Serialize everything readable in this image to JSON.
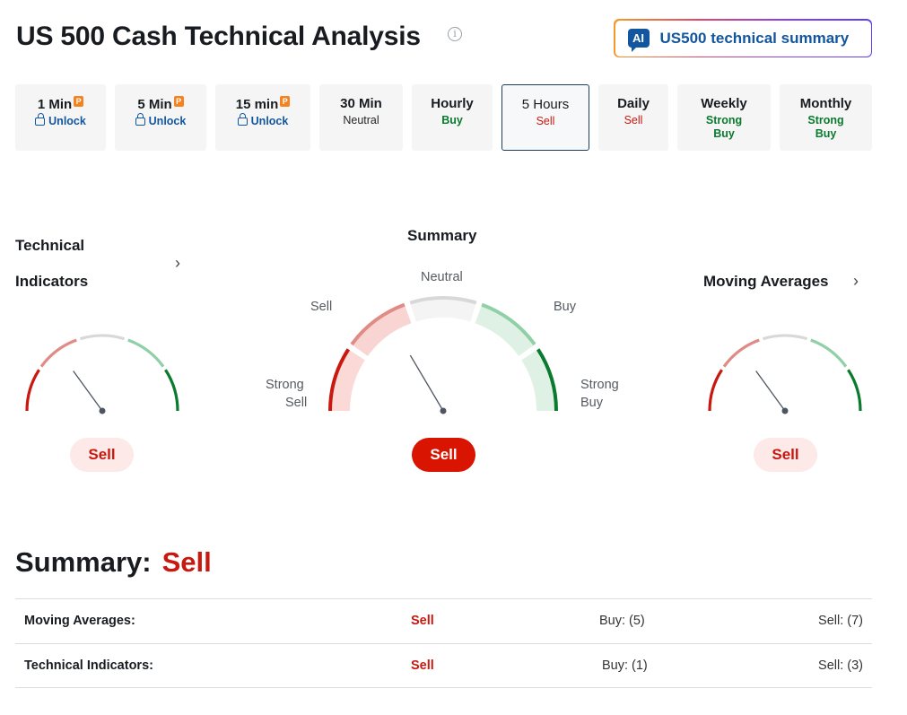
{
  "header": {
    "title": "US 500 Cash Technical Analysis",
    "info_glyph": "i",
    "ai_button": {
      "badge": "AI",
      "label": "US500 technical summary"
    }
  },
  "timeframes": [
    {
      "name": "1 Min",
      "value": "Unlock",
      "premium": true,
      "status": "unlock"
    },
    {
      "name": "5 Min",
      "value": "Unlock",
      "premium": true,
      "status": "unlock"
    },
    {
      "name": "15 min",
      "value": "Unlock",
      "premium": true,
      "status": "unlock"
    },
    {
      "name": "30 Min",
      "value": "Neutral",
      "premium": false,
      "status": "neutral"
    },
    {
      "name": "Hourly",
      "value": "Buy",
      "premium": false,
      "status": "buy"
    },
    {
      "name": "5 Hours",
      "value": "Sell",
      "premium": false,
      "status": "sell",
      "active": true
    },
    {
      "name": "Daily",
      "value": "Sell",
      "premium": false,
      "status": "sell"
    },
    {
      "name": "Weekly",
      "value": "Strong Buy",
      "premium": false,
      "status": "buy"
    },
    {
      "name": "Monthly",
      "value": "Strong Buy",
      "premium": false,
      "status": "buy"
    }
  ],
  "premium_badge": "P",
  "technical_indicators": {
    "title_line1": "Technical",
    "title_line2": "Indicators",
    "signal": "Sell",
    "level": 0.3
  },
  "summary_gauge": {
    "title": "Summary",
    "labels": {
      "strong_sell_1": "Strong",
      "strong_sell_2": "Sell",
      "sell": "Sell",
      "neutral": "Neutral",
      "buy": "Buy",
      "strong_buy_1": "Strong",
      "strong_buy_2": "Buy"
    },
    "signal": "Sell",
    "level": 0.33
  },
  "moving_averages": {
    "title": "Moving Averages",
    "signal": "Sell",
    "level": 0.3
  },
  "summary": {
    "label": "Summary:",
    "value": "Sell",
    "rows": [
      {
        "name": "Moving Averages:",
        "signal": "Sell",
        "buy": "Buy: (5)",
        "sell": "Sell: (7)"
      },
      {
        "name": "Technical Indicators:",
        "signal": "Sell",
        "buy": "Buy: (1)",
        "sell": "Sell: (3)"
      }
    ]
  },
  "colors": {
    "strong_sell": "#c8180f",
    "sell": "#e08b85",
    "neutral": "#d8d8d8",
    "buy": "#8fd0a7",
    "strong_buy": "#0a7a2e",
    "sell_fill": "#f8d4d2",
    "neutral_fill": "#f4f4f4",
    "buy_fill": "#dff1e5",
    "needle": "#4d5561"
  }
}
